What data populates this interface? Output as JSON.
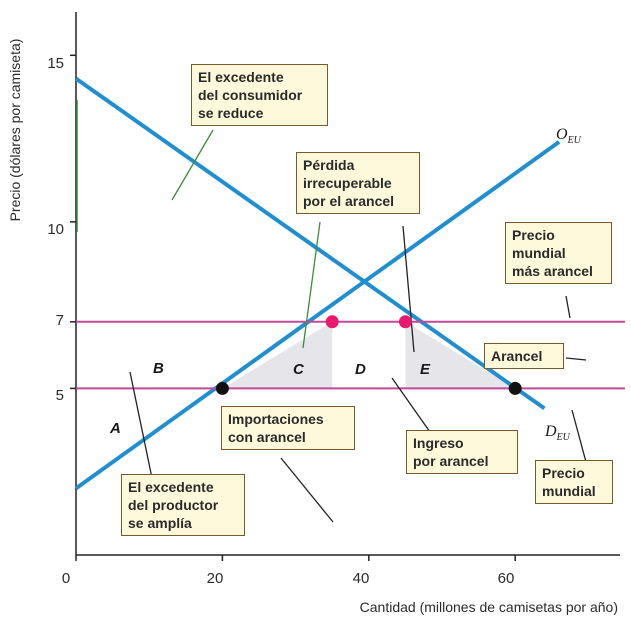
{
  "chart_data": {
    "type": "line",
    "xlabel": "Cantidad (millones de camisetas por año)",
    "ylabel": "Precio (dólares por camiseta)",
    "xlim": [
      0,
      75
    ],
    "ylim": [
      0,
      16.3
    ],
    "x_ticks": [
      "0",
      "20",
      "40",
      "60"
    ],
    "x_tick_values": [
      0,
      20,
      40,
      60
    ],
    "y_ticks": [
      "15",
      "10",
      "7",
      "5"
    ],
    "y_tick_values": [
      15,
      10,
      7,
      5
    ],
    "series": [
      {
        "name": "O",
        "subscript": "EU",
        "kind": "supply",
        "color": "#1f8fd1",
        "x": [
          0,
          66
        ],
        "y": [
          2,
          12.4
        ]
      },
      {
        "name": "D",
        "subscript": "EU",
        "kind": "demand",
        "color": "#1f8fd1",
        "x": [
          0,
          64
        ],
        "y": [
          14.3,
          4.4
        ]
      },
      {
        "kind": "price-line",
        "color": "#c04a98",
        "x": [
          0,
          75
        ],
        "y": [
          7,
          7
        ]
      },
      {
        "kind": "price-line",
        "color": "#c04a98",
        "x": [
          0,
          75
        ],
        "y": [
          5,
          5
        ]
      }
    ],
    "points": [
      {
        "x": 20,
        "y": 5,
        "color": "#111111"
      },
      {
        "x": 60,
        "y": 5,
        "color": "#111111"
      },
      {
        "x": 35,
        "y": 7,
        "color": "#e8196e"
      },
      {
        "x": 45,
        "y": 7,
        "color": "#e8196e"
      }
    ],
    "region_labels": [
      "A",
      "B",
      "C",
      "D",
      "E"
    ],
    "annotations": [
      {
        "id": "consumer-surplus",
        "lines": [
          "El excedente",
          "del consumidor",
          "se reduce"
        ]
      },
      {
        "id": "deadweight-loss",
        "lines": [
          "Pérdida",
          "irrecuperable",
          "por el arancel"
        ]
      },
      {
        "id": "world-price-plus-tariff",
        "lines": [
          "Precio",
          "mundial",
          "más arancel"
        ]
      },
      {
        "id": "tariff",
        "lines": [
          "Arancel"
        ]
      },
      {
        "id": "imports-with-tariff",
        "lines": [
          "Importaciones",
          "con arancel"
        ]
      },
      {
        "id": "tariff-revenue",
        "lines": [
          "Ingreso",
          "por arancel"
        ]
      },
      {
        "id": "producer-surplus",
        "lines": [
          "El excedente",
          "del productor",
          "se amplía"
        ]
      },
      {
        "id": "world-price",
        "lines": [
          "Precio",
          "mundial"
        ]
      }
    ],
    "grid": false
  }
}
